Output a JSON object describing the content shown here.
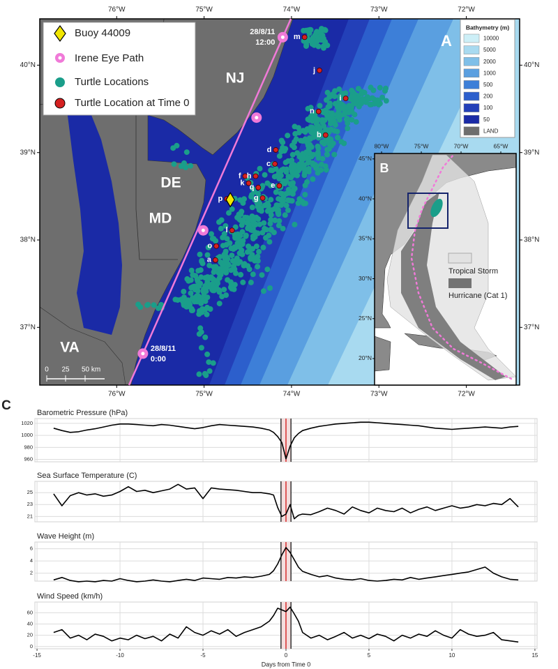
{
  "panel_a": {
    "label": "A",
    "lonlim": [
      -76.88,
      -71.39
    ],
    "latlim": [
      36.34,
      40.53
    ],
    "lonticks": [
      {
        "value": -76,
        "label": "76°W"
      },
      {
        "value": -75,
        "label": "75°W"
      },
      {
        "value": -74,
        "label": "74°W"
      },
      {
        "value": -73,
        "label": "73°W"
      },
      {
        "value": -72,
        "label": "72°W"
      }
    ],
    "latticks": [
      {
        "value": 37,
        "label": "37°N"
      },
      {
        "value": 38,
        "label": "38°N"
      },
      {
        "value": 39,
        "label": "39°N"
      },
      {
        "value": 40,
        "label": "40°N"
      }
    ],
    "legend": {
      "buoy": "Buoy 44009",
      "eye_path": "Irene Eye Path",
      "turtles": "Turtle Locations",
      "time0": "Turtle Location at Time 0"
    },
    "buoy": {
      "lon": -74.7,
      "lat": 38.46,
      "color": "#f2e600"
    },
    "eye_path": {
      "color": "#f07ad8",
      "points": [
        {
          "lon": -74.1,
          "lat": 40.32,
          "date": "28/8/11",
          "time": "12:00"
        },
        {
          "lon": -74.4,
          "lat": 39.4
        },
        {
          "lon": -75.01,
          "lat": 38.11
        },
        {
          "lon": -75.7,
          "lat": 36.7,
          "date": "28/8/11",
          "time": "0:00"
        }
      ]
    },
    "turtle_color": "#1a9e8a",
    "time0_color": "#d42020",
    "turtles": [
      {
        "label": "a",
        "lon": -74.87,
        "lat": 37.77
      },
      {
        "label": "b",
        "lon": -73.61,
        "lat": 39.2
      },
      {
        "label": "c",
        "lon": -74.19,
        "lat": 38.87
      },
      {
        "label": "d",
        "lon": -74.18,
        "lat": 39.03
      },
      {
        "label": "e",
        "lon": -74.14,
        "lat": 38.62
      },
      {
        "label": "f",
        "lon": -74.53,
        "lat": 38.73
      },
      {
        "label": "g",
        "lon": -74.33,
        "lat": 38.48
      },
      {
        "label": "h",
        "lon": -74.41,
        "lat": 38.73
      },
      {
        "label": "i",
        "lon": -73.38,
        "lat": 39.62
      },
      {
        "label": "j",
        "lon": -73.68,
        "lat": 39.94
      },
      {
        "label": "k",
        "lon": -74.49,
        "lat": 38.65
      },
      {
        "label": "l",
        "lon": -74.68,
        "lat": 38.11
      },
      {
        "label": "m",
        "lon": -73.85,
        "lat": 40.32
      },
      {
        "label": "n",
        "lon": -73.69,
        "lat": 39.47
      },
      {
        "label": "o",
        "lon": -74.86,
        "lat": 37.93
      },
      {
        "label": "p",
        "lon": -74.74,
        "lat": 38.47
      },
      {
        "label": "q",
        "lon": -74.38,
        "lat": 38.6
      }
    ],
    "states": [
      "NJ",
      "DE",
      "MD",
      "VA"
    ],
    "scale_bar": [
      "0",
      "25",
      "50 km"
    ],
    "bathymetry": {
      "title": "Bathymetry (m)",
      "levels": [
        {
          "label": "10000",
          "color": "#cdeff7"
        },
        {
          "label": "5000",
          "color": "#a8daf0"
        },
        {
          "label": "2000",
          "color": "#7fbfe8"
        },
        {
          "label": "1000",
          "color": "#5a9fe0"
        },
        {
          "label": "500",
          "color": "#3d7fd8"
        },
        {
          "label": "200",
          "color": "#2c5fcc"
        },
        {
          "label": "100",
          "color": "#2340b8"
        },
        {
          "label": "50",
          "color": "#1a2aa6"
        },
        {
          "label": "LAND",
          "color": "#6e6e6e"
        }
      ]
    }
  },
  "panel_b": {
    "label": "B",
    "lonlim": [
      -80.88,
      -63.07
    ],
    "latlim": [
      16.68,
      45.68
    ],
    "lonticks": [
      {
        "value": -80,
        "label": "80°W"
      },
      {
        "value": -75,
        "label": "75°W"
      },
      {
        "value": -70,
        "label": "70°W"
      },
      {
        "value": -65,
        "label": "65°W"
      }
    ],
    "latticks": [
      {
        "value": 45,
        "label": "45°N"
      },
      {
        "value": 40,
        "label": "40°N"
      },
      {
        "value": 35,
        "label": "35°N"
      },
      {
        "value": 30,
        "label": "30°N"
      },
      {
        "value": 25,
        "label": "25°N"
      },
      {
        "value": 20,
        "label": "20°N"
      }
    ],
    "legend": [
      {
        "label": "Tropical Storm",
        "color": "#e2e2e2"
      },
      {
        "label": "Hurricane (Cat 1)",
        "color": "#737373"
      }
    ]
  },
  "panel_c_label": "C",
  "chart_data": [
    {
      "type": "line",
      "title": "Barometric Pressure (hPa)",
      "color": "#000000",
      "x": [
        -14,
        -13.5,
        -13,
        -12.5,
        -12,
        -11.5,
        -11,
        -10.5,
        -10,
        -9.5,
        -9,
        -8.5,
        -8,
        -7.5,
        -7,
        -6.5,
        -6,
        -5.5,
        -5,
        -4.5,
        -4,
        -3.5,
        -3,
        -2.5,
        -2,
        -1.5,
        -1,
        -0.75,
        -0.5,
        -0.25,
        0,
        0.25,
        0.5,
        0.75,
        1,
        1.5,
        2,
        2.5,
        3,
        3.5,
        4,
        4.5,
        5,
        5.5,
        6,
        6.5,
        7,
        7.5,
        8,
        8.5,
        9,
        9.5,
        10,
        10.5,
        11,
        11.5,
        12,
        12.5,
        13,
        13.5,
        14
      ],
      "values": [
        1012,
        1008,
        1005,
        1006,
        1009,
        1011,
        1014,
        1017,
        1019,
        1019,
        1018,
        1017,
        1016,
        1018,
        1017,
        1015,
        1013,
        1011,
        1013,
        1016,
        1018,
        1017,
        1016,
        1015,
        1014,
        1012,
        1009,
        1005,
        998,
        988,
        961,
        982,
        996,
        1003,
        1008,
        1012,
        1015,
        1017,
        1019,
        1020,
        1021,
        1022,
        1022,
        1021,
        1020,
        1019,
        1018,
        1017,
        1016,
        1014,
        1012,
        1011,
        1010,
        1011,
        1012,
        1013,
        1014,
        1013,
        1012,
        1014,
        1015
      ],
      "xlim": [
        -15.13,
        15.13
      ],
      "xticks": [
        -15,
        -10,
        -5,
        0,
        5,
        10,
        15
      ],
      "ylim": [
        956,
        1028
      ],
      "yticks": [
        960,
        980,
        1000,
        1020
      ],
      "vlines": [
        -0.3,
        0,
        0.3
      ]
    },
    {
      "type": "line",
      "title": "Sea Surface Temperature (C)",
      "color": "#000000",
      "x": [
        -14,
        -13.5,
        -13,
        -12.5,
        -12,
        -11.5,
        -11,
        -10.5,
        -10,
        -9.5,
        -9,
        -8.5,
        -8,
        -7.5,
        -7,
        -6.5,
        -6,
        -5.5,
        -5,
        -4.5,
        -4,
        -3.5,
        -3,
        -2.5,
        -2,
        -1.5,
        -1,
        -0.75,
        -0.5,
        -0.25,
        0,
        0.25,
        0.5,
        0.75,
        1,
        1.5,
        2,
        2.5,
        3,
        3.5,
        4,
        4.5,
        5,
        5.5,
        6,
        6.5,
        7,
        7.5,
        8,
        8.5,
        9,
        9.5,
        10,
        10.5,
        11,
        11.5,
        12,
        12.5,
        13,
        13.5,
        14
      ],
      "values": [
        24.8,
        22.8,
        24.5,
        25.0,
        24.6,
        24.8,
        24.4,
        24.6,
        25.2,
        26.0,
        25.2,
        25.4,
        25.0,
        25.3,
        25.6,
        26.4,
        25.6,
        25.8,
        24.0,
        25.8,
        25.6,
        25.5,
        25.4,
        25.2,
        25.0,
        25.0,
        24.8,
        24.6,
        22.5,
        21.0,
        21.4,
        23.0,
        20.6,
        21.2,
        21.4,
        21.3,
        21.8,
        22.4,
        22.0,
        21.4,
        22.6,
        22.0,
        21.6,
        22.4,
        22.0,
        21.8,
        22.4,
        21.6,
        22.2,
        22.6,
        22.0,
        22.4,
        22.8,
        22.4,
        22.6,
        23.0,
        22.8,
        23.2,
        23.0,
        24.0,
        22.6
      ],
      "xlim": [
        -15.13,
        15.13
      ],
      "xticks": [
        -15,
        -10,
        -5,
        0,
        5,
        10,
        15
      ],
      "ylim": [
        20.1,
        26.9
      ],
      "yticks": [
        21,
        23,
        25
      ],
      "vlines": [
        -0.3,
        0,
        0.3
      ]
    },
    {
      "type": "line",
      "title": "Wave Height (m)",
      "color": "#000000",
      "x": [
        -14,
        -13.5,
        -13,
        -12.5,
        -12,
        -11.5,
        -11,
        -10.5,
        -10,
        -9.5,
        -9,
        -8.5,
        -8,
        -7.5,
        -7,
        -6.5,
        -6,
        -5.5,
        -5,
        -4.5,
        -4,
        -3.5,
        -3,
        -2.5,
        -2,
        -1.5,
        -1,
        -0.75,
        -0.5,
        -0.25,
        0,
        0.25,
        0.5,
        0.75,
        1,
        1.5,
        2,
        2.5,
        3,
        3.5,
        4,
        4.5,
        5,
        5.5,
        6,
        6.5,
        7,
        7.5,
        8,
        8.5,
        9,
        9.5,
        10,
        10.5,
        11,
        11.5,
        12,
        12.5,
        13,
        13.5,
        14
      ],
      "values": [
        0.9,
        1.3,
        0.8,
        0.6,
        0.7,
        0.6,
        0.8,
        0.7,
        1.1,
        0.8,
        0.6,
        0.7,
        0.9,
        0.7,
        0.6,
        0.8,
        1.0,
        0.8,
        1.2,
        1.1,
        1.0,
        1.3,
        1.2,
        1.4,
        1.3,
        1.5,
        1.8,
        2.4,
        3.5,
        5.0,
        6.2,
        5.4,
        4.2,
        3.0,
        2.3,
        1.8,
        1.4,
        1.6,
        1.2,
        1.0,
        0.9,
        1.1,
        0.8,
        0.7,
        0.8,
        1.0,
        0.9,
        1.3,
        1.0,
        1.2,
        1.4,
        1.6,
        1.8,
        2.0,
        2.2,
        2.6,
        3.0,
        2.0,
        1.4,
        1.0,
        0.9
      ],
      "xlim": [
        -15.13,
        15.13
      ],
      "xticks": [
        -15,
        -10,
        -5,
        0,
        5,
        10,
        15
      ],
      "ylim": [
        0.7,
        7.1
      ],
      "yticks": [
        2,
        4,
        6
      ],
      "vlines": [
        -0.3,
        0,
        0.3
      ]
    },
    {
      "type": "line",
      "title": "Wind Speed (km/h)",
      "color": "#000000",
      "x": [
        -14,
        -13.5,
        -13,
        -12.5,
        -12,
        -11.5,
        -11,
        -10.5,
        -10,
        -9.5,
        -9,
        -8.5,
        -8,
        -7.5,
        -7,
        -6.5,
        -6,
        -5.5,
        -5,
        -4.5,
        -4,
        -3.5,
        -3,
        -2.5,
        -2,
        -1.5,
        -1,
        -0.75,
        -0.5,
        -0.25,
        0,
        0.25,
        0.5,
        0.75,
        1,
        1.5,
        2,
        2.5,
        3,
        3.5,
        4,
        4.5,
        5,
        5.5,
        6,
        6.5,
        7,
        7.5,
        8,
        8.5,
        9,
        9.5,
        10,
        10.5,
        11,
        11.5,
        12,
        12.5,
        13,
        13.5,
        14
      ],
      "values": [
        25,
        30,
        15,
        20,
        12,
        22,
        18,
        10,
        15,
        12,
        20,
        14,
        18,
        10,
        22,
        15,
        35,
        25,
        20,
        28,
        22,
        30,
        18,
        25,
        30,
        35,
        45,
        55,
        68,
        65,
        62,
        70,
        58,
        45,
        25,
        15,
        20,
        12,
        18,
        25,
        15,
        20,
        14,
        22,
        18,
        10,
        20,
        15,
        22,
        18,
        28,
        20,
        15,
        30,
        22,
        18,
        20,
        25,
        12,
        10,
        8
      ],
      "xlim": [
        -15.13,
        15.13
      ],
      "xticks": [
        -15,
        -10,
        -5,
        0,
        5,
        10,
        15
      ],
      "ylim": [
        -4,
        79
      ],
      "yticks": [
        0,
        20,
        40,
        60
      ],
      "vlines": [
        -0.3,
        0,
        0.3
      ],
      "x_label": "Days from Time 0"
    }
  ]
}
